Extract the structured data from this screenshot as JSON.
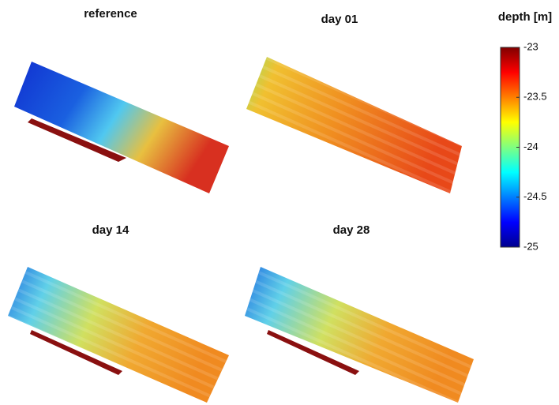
{
  "panels": [
    {
      "title": "reference"
    },
    {
      "title": "day 01"
    },
    {
      "title": "day 14"
    },
    {
      "title": "day 28"
    }
  ],
  "colorbar": {
    "label": "depth [m]",
    "lim": [
      -25,
      -23
    ],
    "ticks": [
      -23,
      -23.5,
      -24,
      -24.5,
      -25
    ]
  }
}
